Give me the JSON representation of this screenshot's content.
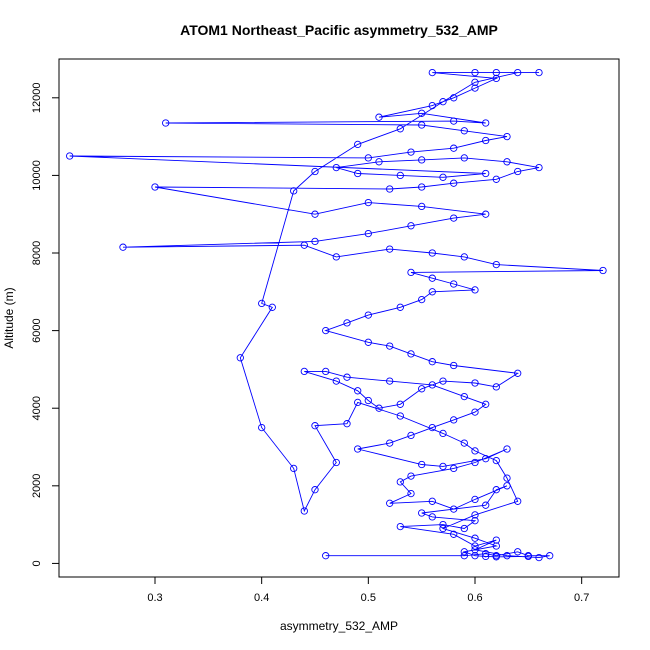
{
  "chart_data": {
    "type": "line",
    "title": "ATOM1 Northeast_Pacific asymmetry_532_AMP",
    "xlabel": "asymmetry_532_AMP",
    "ylabel": "Altitude (m)",
    "xlim": [
      0.21,
      0.735
    ],
    "ylim": [
      -350,
      13000
    ],
    "x_ticks": [
      0.3,
      0.4,
      0.5,
      0.6,
      0.7
    ],
    "x_tick_labels": [
      "0.3",
      "0.4",
      "0.5",
      "0.6",
      "0.7"
    ],
    "y_ticks": [
      0,
      2000,
      4000,
      6000,
      8000,
      10000,
      12000
    ],
    "y_tick_labels": [
      "0",
      "2000",
      "4000",
      "6000",
      "8000",
      "10000",
      "12000"
    ],
    "grid": false,
    "legend": "none",
    "series_color": "#0000ff",
    "marker": "open-circle",
    "points": [
      [
        0.46,
        200
      ],
      [
        0.59,
        200
      ],
      [
        0.61,
        250
      ],
      [
        0.62,
        200
      ],
      [
        0.64,
        300
      ],
      [
        0.65,
        200
      ],
      [
        0.67,
        200
      ],
      [
        0.66,
        150
      ],
      [
        0.63,
        200
      ],
      [
        0.6,
        350
      ],
      [
        0.62,
        600
      ],
      [
        0.6,
        450
      ],
      [
        0.58,
        750
      ],
      [
        0.53,
        950
      ],
      [
        0.57,
        1000
      ],
      [
        0.59,
        900
      ],
      [
        0.6,
        1100
      ],
      [
        0.56,
        1200
      ],
      [
        0.55,
        1300
      ],
      [
        0.61,
        1500
      ],
      [
        0.62,
        1900
      ],
      [
        0.63,
        2000
      ],
      [
        0.6,
        1650
      ],
      [
        0.58,
        1400
      ],
      [
        0.56,
        1600
      ],
      [
        0.52,
        1550
      ],
      [
        0.54,
        1800
      ],
      [
        0.53,
        2100
      ],
      [
        0.54,
        2250
      ],
      [
        0.58,
        2450
      ],
      [
        0.6,
        2600
      ],
      [
        0.63,
        2950
      ],
      [
        0.61,
        2700
      ],
      [
        0.57,
        2500
      ],
      [
        0.55,
        2550
      ],
      [
        0.49,
        2950
      ],
      [
        0.52,
        3100
      ],
      [
        0.54,
        3300
      ],
      [
        0.56,
        3500
      ],
      [
        0.58,
        3700
      ],
      [
        0.6,
        3900
      ],
      [
        0.61,
        4100
      ],
      [
        0.59,
        4300
      ],
      [
        0.56,
        4600
      ],
      [
        0.52,
        4700
      ],
      [
        0.48,
        4800
      ],
      [
        0.46,
        4950
      ],
      [
        0.44,
        4950
      ],
      [
        0.47,
        4700
      ],
      [
        0.49,
        4450
      ],
      [
        0.5,
        4200
      ],
      [
        0.51,
        4000
      ],
      [
        0.53,
        4100
      ],
      [
        0.55,
        4500
      ],
      [
        0.57,
        4700
      ],
      [
        0.6,
        4650
      ],
      [
        0.62,
        4550
      ],
      [
        0.64,
        4900
      ],
      [
        0.58,
        5100
      ],
      [
        0.56,
        5200
      ],
      [
        0.54,
        5400
      ],
      [
        0.52,
        5600
      ],
      [
        0.5,
        5700
      ],
      [
        0.46,
        6000
      ],
      [
        0.48,
        6200
      ],
      [
        0.5,
        6400
      ],
      [
        0.53,
        6600
      ],
      [
        0.55,
        6800
      ],
      [
        0.56,
        7000
      ],
      [
        0.6,
        7050
      ],
      [
        0.58,
        7200
      ],
      [
        0.56,
        7350
      ],
      [
        0.54,
        7500
      ],
      [
        0.72,
        7550
      ],
      [
        0.62,
        7700
      ],
      [
        0.59,
        7900
      ],
      [
        0.56,
        8000
      ],
      [
        0.52,
        8100
      ],
      [
        0.47,
        7900
      ],
      [
        0.44,
        8200
      ],
      [
        0.27,
        8150
      ],
      [
        0.45,
        8300
      ],
      [
        0.5,
        8500
      ],
      [
        0.54,
        8700
      ],
      [
        0.58,
        8900
      ],
      [
        0.61,
        9000
      ],
      [
        0.55,
        9200
      ],
      [
        0.5,
        9300
      ],
      [
        0.45,
        9000
      ],
      [
        0.3,
        9700
      ],
      [
        0.52,
        9650
      ],
      [
        0.55,
        9700
      ],
      [
        0.58,
        9800
      ],
      [
        0.62,
        9900
      ],
      [
        0.64,
        10100
      ],
      [
        0.66,
        10200
      ],
      [
        0.63,
        10350
      ],
      [
        0.59,
        10450
      ],
      [
        0.55,
        10400
      ],
      [
        0.51,
        10350
      ],
      [
        0.47,
        10200
      ],
      [
        0.49,
        10050
      ],
      [
        0.53,
        10000
      ],
      [
        0.57,
        9950
      ],
      [
        0.61,
        10050
      ],
      [
        0.22,
        10500
      ],
      [
        0.5,
        10450
      ],
      [
        0.54,
        10600
      ],
      [
        0.58,
        10700
      ],
      [
        0.61,
        10900
      ],
      [
        0.63,
        11000
      ],
      [
        0.59,
        11150
      ],
      [
        0.55,
        11300
      ],
      [
        0.31,
        11350
      ],
      [
        0.58,
        11400
      ],
      [
        0.61,
        11350
      ],
      [
        0.55,
        11600
      ],
      [
        0.51,
        11500
      ],
      [
        0.56,
        11800
      ],
      [
        0.58,
        12000
      ],
      [
        0.6,
        12250
      ],
      [
        0.62,
        12500
      ],
      [
        0.56,
        12650
      ],
      [
        0.6,
        12650
      ],
      [
        0.62,
        12650
      ],
      [
        0.66,
        12650
      ],
      [
        0.64,
        12650
      ],
      [
        0.6,
        12400
      ],
      [
        0.57,
        11900
      ],
      [
        0.53,
        11200
      ],
      [
        0.49,
        10800
      ],
      [
        0.45,
        10100
      ],
      [
        0.43,
        9600
      ],
      [
        0.4,
        6700
      ],
      [
        0.41,
        6600
      ],
      [
        0.38,
        5300
      ],
      [
        0.4,
        3500
      ],
      [
        0.43,
        2450
      ],
      [
        0.44,
        1350
      ],
      [
        0.45,
        1900
      ],
      [
        0.47,
        2600
      ],
      [
        0.45,
        3550
      ],
      [
        0.48,
        3600
      ],
      [
        0.49,
        4150
      ],
      [
        0.53,
        3800
      ],
      [
        0.57,
        3350
      ],
      [
        0.59,
        3100
      ],
      [
        0.6,
        2900
      ],
      [
        0.62,
        2650
      ],
      [
        0.63,
        2200
      ],
      [
        0.64,
        1600
      ],
      [
        0.6,
        1250
      ],
      [
        0.57,
        900
      ],
      [
        0.6,
        650
      ],
      [
        0.62,
        450
      ],
      [
        0.59,
        300
      ],
      [
        0.6,
        200
      ],
      [
        0.61,
        180
      ],
      [
        0.62,
        170
      ],
      [
        0.65,
        180
      ]
    ]
  }
}
